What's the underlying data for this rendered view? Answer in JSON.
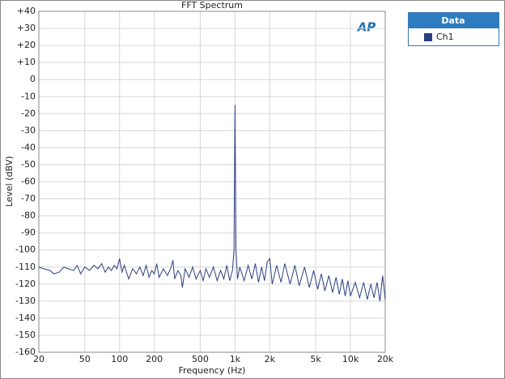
{
  "chart_data": {
    "type": "line",
    "title": "FFT Spectrum",
    "xlabel": "Frequency (Hz)",
    "ylabel": "Level (dBV)",
    "logo": "AP",
    "legend_title": "Data",
    "log_x": true,
    "grid": true,
    "x": [
      20,
      22,
      25,
      27,
      30,
      33,
      36,
      40,
      43,
      46,
      50,
      55,
      60,
      65,
      70,
      75,
      80,
      85,
      90,
      95,
      100,
      105,
      110,
      120,
      130,
      140,
      150,
      160,
      170,
      180,
      190,
      200,
      210,
      220,
      240,
      260,
      280,
      290,
      300,
      320,
      340,
      350,
      370,
      400,
      430,
      460,
      500,
      530,
      560,
      600,
      650,
      700,
      750,
      800,
      850,
      900,
      950,
      980,
      1000,
      1020,
      1050,
      1100,
      1200,
      1300,
      1400,
      1500,
      1600,
      1700,
      1800,
      1900,
      2000,
      2100,
      2300,
      2500,
      2700,
      3000,
      3300,
      3600,
      4000,
      4400,
      4800,
      5200,
      5600,
      6000,
      6500,
      7000,
      7500,
      8000,
      8500,
      9000,
      9500,
      10000,
      11000,
      12000,
      13000,
      14000,
      15000,
      16000,
      17000,
      18000,
      19000,
      20000
    ],
    "series": [
      {
        "name": "Ch1",
        "color": "#2b3f80",
        "values": [
          -110,
          -111,
          -112,
          -114,
          -113,
          -110,
          -111,
          -112,
          -109,
          -114,
          -110,
          -112,
          -109,
          -111,
          -108,
          -113,
          -110,
          -112,
          -109,
          -111,
          -105,
          -113,
          -109,
          -117,
          -111,
          -114,
          -110,
          -115,
          -109,
          -116,
          -112,
          -114,
          -108,
          -116,
          -111,
          -115,
          -110,
          -106,
          -117,
          -112,
          -115,
          -122,
          -111,
          -116,
          -110,
          -117,
          -112,
          -118,
          -111,
          -116,
          -110,
          -118,
          -112,
          -117,
          -109,
          -118,
          -112,
          -100,
          -15,
          -100,
          -117,
          -110,
          -118,
          -109,
          -117,
          -108,
          -119,
          -110,
          -118,
          -107,
          -105,
          -120,
          -109,
          -119,
          -108,
          -120,
          -109,
          -121,
          -110,
          -122,
          -112,
          -123,
          -114,
          -124,
          -115,
          -125,
          -116,
          -126,
          -117,
          -127,
          -118,
          -127,
          -119,
          -128,
          -119,
          -129,
          -120,
          -128,
          -119,
          -130,
          -115,
          -129
        ]
      }
    ],
    "xlim": [
      20,
      20000
    ],
    "xticks": [
      20,
      50,
      100,
      200,
      500,
      {
        "value": 1000,
        "label": "1k"
      },
      {
        "value": 2000,
        "label": "2k"
      },
      {
        "value": 5000,
        "label": "5k"
      },
      {
        "value": 10000,
        "label": "10k"
      },
      {
        "value": 20000,
        "label": "20k"
      }
    ],
    "ylim": [
      -160,
      40
    ],
    "yticks": [
      {
        "value": 40,
        "label": "+40"
      },
      {
        "value": 30,
        "label": "+30"
      },
      {
        "value": 20,
        "label": "+20"
      },
      {
        "value": 10,
        "label": "+10"
      },
      0,
      -10,
      -20,
      -30,
      -40,
      -50,
      -60,
      -70,
      -80,
      -90,
      -100,
      -110,
      -120,
      -130,
      -140,
      -150,
      -160
    ]
  }
}
